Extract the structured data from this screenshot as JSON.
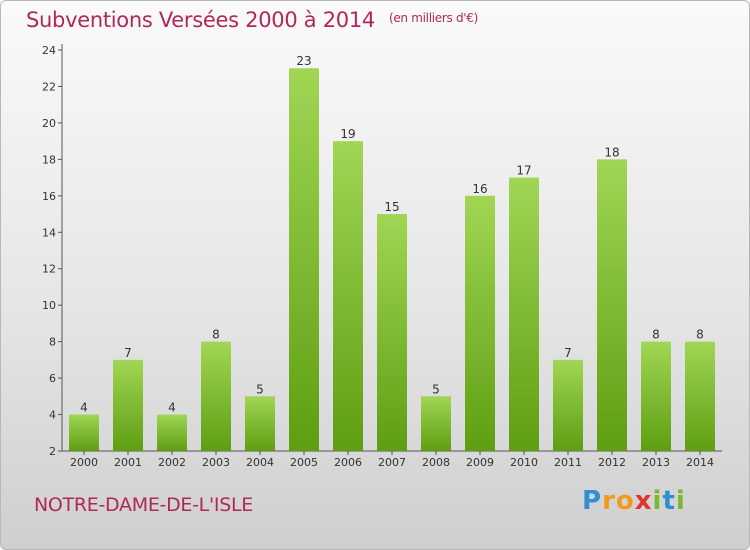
{
  "header": {
    "title": "Subventions Versées 2000 à 2014",
    "subtitle": "(en milliers d'€)"
  },
  "footer": {
    "commune": "NOTRE-DAME-DE-L'ISLE",
    "logo_letters": [
      {
        "char": "P",
        "color": "#2f8fd0"
      },
      {
        "char": "r",
        "color": "#f29a1d"
      },
      {
        "char": "o",
        "color": "#f29a1d"
      },
      {
        "char": "x",
        "color": "#e2342f"
      },
      {
        "char": "i",
        "color": "#7cb82f"
      },
      {
        "char": "t",
        "color": "#2f8fd0"
      },
      {
        "char": "i",
        "color": "#7cb82f"
      }
    ]
  },
  "colors": {
    "title": "#b0285a",
    "bar_top": "#a0d654",
    "bar_bottom": "#5e9e12",
    "axis": "#555555"
  },
  "chart_data": {
    "type": "bar",
    "categories": [
      "2000",
      "2001",
      "2002",
      "2003",
      "2004",
      "2005",
      "2006",
      "2007",
      "2008",
      "2009",
      "2010",
      "2011",
      "2012",
      "2013",
      "2014"
    ],
    "values": [
      4,
      7,
      4,
      8,
      5,
      23,
      19,
      15,
      5,
      16,
      17,
      7,
      18,
      8,
      8
    ],
    "ylim": [
      2,
      24
    ],
    "yticks": [
      2,
      4,
      6,
      8,
      10,
      12,
      14,
      16,
      18,
      20,
      22,
      24
    ],
    "grid": false,
    "legend": "none"
  }
}
